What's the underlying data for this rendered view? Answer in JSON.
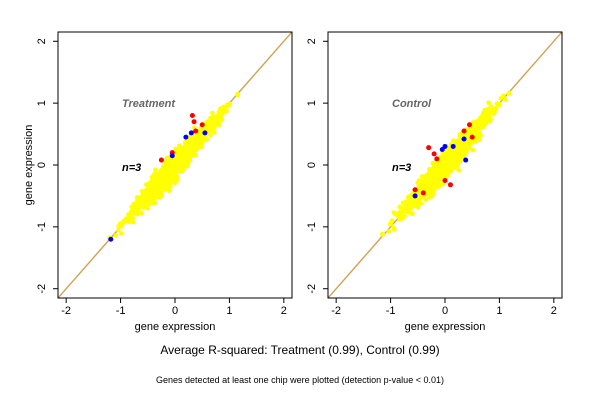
{
  "caption": "Average R-squared: Treatment (0.99), Control (0.99)",
  "footnote": "Genes detected at least one chip were plotted (detection p-value < 0.01)",
  "colors": {
    "yellow": "#ffff00",
    "red": "#ff0000",
    "blue": "#0000ff",
    "identity_line": "#d2a050",
    "frame": "#000000"
  },
  "chart_data": [
    {
      "type": "scatter",
      "title": "Treatment",
      "annotation": "n=3",
      "xlabel": "gene expression",
      "ylabel": "gene expression",
      "xlim": [
        -2.15,
        2.15
      ],
      "ylim": [
        -2.15,
        2.15
      ],
      "x_ticks": [
        "-2",
        "-1",
        "0",
        "1",
        "2"
      ],
      "y_ticks": [
        "-2",
        "-1",
        "0",
        "1",
        "2"
      ],
      "identity_line": true,
      "series": [
        {
          "color": "yellow",
          "points": [
            [
              -1.2,
              -1.18
            ],
            [
              -1.0,
              -0.95
            ],
            [
              -0.8,
              -0.76
            ],
            [
              -0.6,
              -0.58
            ],
            [
              -0.4,
              -0.38
            ],
            [
              -0.2,
              -0.2
            ],
            [
              0.0,
              0.02
            ],
            [
              0.2,
              0.21
            ],
            [
              0.4,
              0.4
            ],
            [
              0.6,
              0.6
            ],
            [
              0.8,
              0.8
            ],
            [
              1.0,
              0.98
            ],
            [
              1.15,
              1.14
            ]
          ]
        },
        {
          "color": "red",
          "points": [
            [
              0.32,
              0.8
            ],
            [
              0.38,
              0.55
            ],
            [
              0.35,
              0.7
            ],
            [
              -0.05,
              0.2
            ],
            [
              -0.25,
              0.08
            ],
            [
              0.5,
              0.65
            ]
          ]
        },
        {
          "color": "blue",
          "points": [
            [
              -1.18,
              -1.2
            ],
            [
              0.55,
              0.52
            ],
            [
              0.3,
              0.52
            ],
            [
              -0.05,
              0.15
            ],
            [
              0.2,
              0.45
            ]
          ]
        }
      ]
    },
    {
      "type": "scatter",
      "title": "Control",
      "annotation": "n=3",
      "xlabel": "gene expression",
      "ylabel": "",
      "xlim": [
        -2.15,
        2.15
      ],
      "ylim": [
        -2.15,
        2.15
      ],
      "x_ticks": [
        "-2",
        "-1",
        "0",
        "1",
        "2"
      ],
      "y_ticks": [
        "-2",
        "-1",
        "0",
        "1",
        "2"
      ],
      "identity_line": true,
      "series": [
        {
          "color": "yellow",
          "points": [
            [
              -1.15,
              -1.12
            ],
            [
              -1.0,
              -0.95
            ],
            [
              -0.8,
              -0.76
            ],
            [
              -0.6,
              -0.58
            ],
            [
              -0.4,
              -0.38
            ],
            [
              -0.2,
              -0.2
            ],
            [
              0.0,
              0.02
            ],
            [
              0.2,
              0.21
            ],
            [
              0.4,
              0.4
            ],
            [
              0.6,
              0.6
            ],
            [
              0.8,
              0.8
            ],
            [
              1.0,
              0.98
            ],
            [
              1.18,
              1.16
            ]
          ]
        },
        {
          "color": "red",
          "points": [
            [
              -0.3,
              0.28
            ],
            [
              -0.2,
              0.18
            ],
            [
              0.0,
              -0.25
            ],
            [
              0.1,
              -0.32
            ],
            [
              0.35,
              0.55
            ],
            [
              0.45,
              0.65
            ],
            [
              -0.4,
              -0.45
            ],
            [
              -0.55,
              -0.4
            ],
            [
              0.5,
              0.45
            ],
            [
              -0.15,
              0.1
            ]
          ]
        },
        {
          "color": "blue",
          "points": [
            [
              -0.55,
              -0.5
            ],
            [
              0.35,
              0.42
            ],
            [
              0.15,
              0.3
            ],
            [
              0.0,
              0.3
            ],
            [
              0.38,
              0.08
            ],
            [
              -0.05,
              0.25
            ]
          ]
        }
      ]
    }
  ]
}
